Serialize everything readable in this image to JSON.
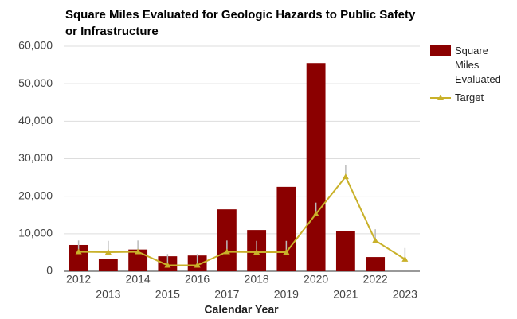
{
  "chart_data": {
    "type": "bar",
    "title": "Square Miles Evaluated for Geologic Hazards to Public Safety or Infrastructure",
    "x_label": "Calendar Year",
    "categories": [
      "2012",
      "2013",
      "2014",
      "2015",
      "2016",
      "2017",
      "2018",
      "2019",
      "2020",
      "2021",
      "2022",
      "2023"
    ],
    "series": [
      {
        "name": "Square Miles Evaluated",
        "type": "bar",
        "color": "#8b0000",
        "values": [
          7000,
          3300,
          5800,
          4000,
          4200,
          16500,
          11000,
          22500,
          55500,
          10800,
          3800,
          null
        ]
      },
      {
        "name": "Target",
        "type": "line",
        "color": "#c9b12a",
        "values": [
          5200,
          5100,
          5200,
          1600,
          1600,
          5200,
          5100,
          5100,
          15300,
          25200,
          8200,
          3200
        ],
        "errors": [
          3000,
          3000,
          3000,
          3000,
          3000,
          3000,
          3000,
          3000,
          3000,
          3000,
          3000,
          3000
        ]
      }
    ],
    "ylim": [
      0,
      60000
    ],
    "yticks": [
      0,
      {
        "value": 10000,
        "label": "10,000"
      },
      {
        "value": 20000,
        "label": "20,000"
      },
      {
        "value": 30000,
        "label": "30,000"
      },
      {
        "value": 40000,
        "label": "40,000"
      },
      {
        "value": 50000,
        "label": "50,000"
      },
      {
        "value": 60000,
        "label": "60,000"
      }
    ],
    "grid": true,
    "legend": "right"
  }
}
